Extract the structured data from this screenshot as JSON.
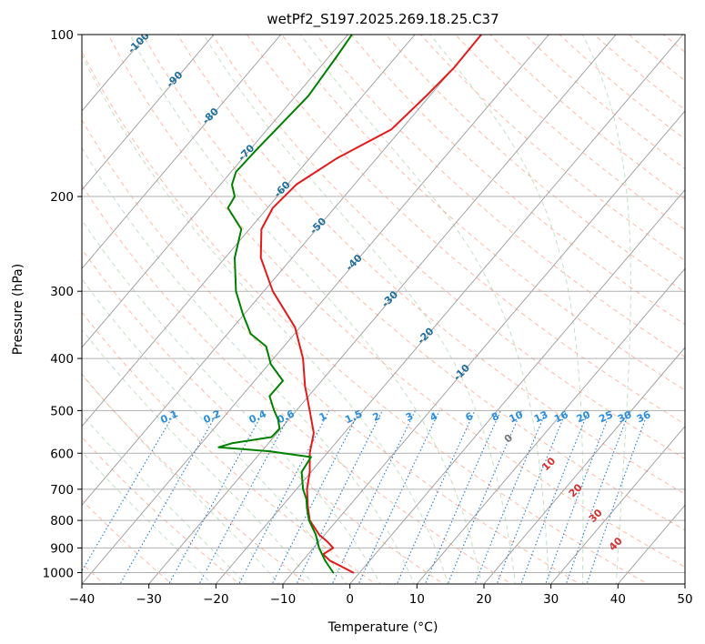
{
  "chart_data": {
    "type": "line",
    "title": "wetPf2_S197.2025.269.18.25.C37",
    "xlabel": "Temperature (°C)",
    "ylabel": "Pressure (hPa)",
    "xlim": [
      -40,
      50
    ],
    "ylim": [
      1050,
      100
    ],
    "y_scale": "log",
    "x_ticks": [
      -40,
      -30,
      -20,
      -10,
      0,
      10,
      20,
      30,
      40,
      50
    ],
    "x_tick_labels": [
      "−40",
      "−30",
      "−20",
      "−10",
      "0",
      "10",
      "20",
      "30",
      "40",
      "50"
    ],
    "y_ticks": [
      1000,
      900,
      800,
      700,
      600,
      500,
      400,
      300,
      200,
      100
    ],
    "y_tick_labels": [
      "1000",
      "900",
      "800",
      "700",
      "600",
      "500",
      "400",
      "300",
      "200",
      "100"
    ],
    "grid": true,
    "skew_isotherms": true,
    "isotherm_labels": [
      "-100",
      "-90",
      "-80",
      "-70",
      "-60",
      "-50",
      "-40",
      "-30",
      "-20",
      "-10"
    ],
    "dry_adiabat_labels": [
      "0",
      "10",
      "20",
      "30",
      "40"
    ],
    "mixing_ratio_labels": [
      "0.1",
      "0.2",
      "0.4",
      "0.6",
      "1",
      "1.5",
      "2",
      "3",
      "4",
      "6",
      "8",
      "10",
      "13",
      "16",
      "20",
      "25",
      "30",
      "36"
    ],
    "colors": {
      "temperature": "#e31a1c",
      "dewpoint": "#008000",
      "isotherm": "#9a9a9a",
      "isotherm_label": "#1f6f9f",
      "dry_adiabat": "#ff8c6a",
      "dry_adiabat_label": "#d7302f",
      "moist_adiabat": "#9acd9a",
      "mixing_ratio": "#1f78d1",
      "mixing_ratio_label": "#2a8ee0"
    },
    "series": [
      {
        "key": "temperature",
        "pressure": [
          1000,
          975,
          950,
          925,
          900,
          875,
          850,
          800,
          750,
          700,
          650,
          600,
          550,
          500,
          450,
          400,
          350,
          300,
          260,
          230,
          210,
          190,
          170,
          150,
          130,
          115,
          100
        ],
        "values": [
          0.5,
          -1.2,
          -3.0,
          -4.0,
          -2.5,
          -3.4,
          -4.6,
          -6.0,
          -6.3,
          -6.4,
          -6.0,
          -6.0,
          -5.4,
          -6.0,
          -6.7,
          -7.0,
          -8.2,
          -11.5,
          -13.3,
          -13.2,
          -11.5,
          -8.0,
          -2.0,
          6.2,
          11.4,
          15.6,
          19.6
        ]
      },
      {
        "key": "dewpoint",
        "pressure": [
          1000,
          950,
          900,
          850,
          800,
          760,
          730,
          700,
          650,
          610,
          595,
          585,
          575,
          560,
          540,
          520,
          500,
          470,
          440,
          410,
          380,
          360,
          330,
          300,
          260,
          230,
          210,
          200,
          190,
          180,
          165,
          150,
          130,
          110,
          100
        ],
        "values": [
          -2.5,
          -3.7,
          -4.6,
          -5.1,
          -6.1,
          -6.4,
          -6.5,
          -7.0,
          -7.2,
          -5.8,
          -12.0,
          -19.6,
          -17.6,
          -11.7,
          -10.5,
          -10.7,
          -11.3,
          -12.0,
          -10.0,
          -11.8,
          -12.5,
          -14.8,
          -16.0,
          -17.0,
          -17.2,
          -16.2,
          -18.2,
          -17.2,
          -17.6,
          -17.0,
          -14.2,
          -11.0,
          -6.2,
          -2.0,
          0.3
        ]
      }
    ]
  }
}
